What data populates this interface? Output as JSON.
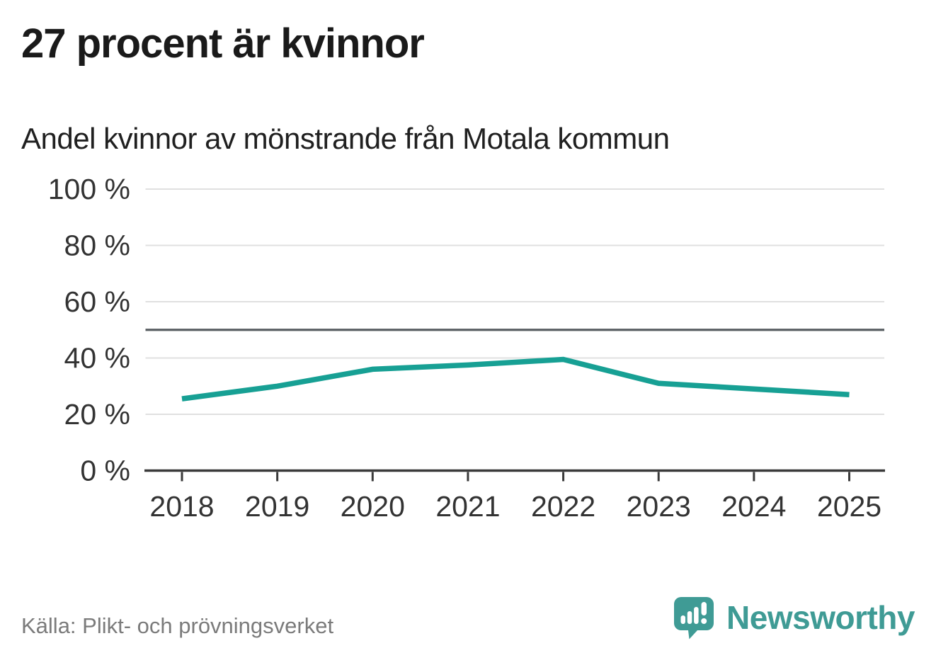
{
  "page": {
    "title": "27 procent är kvinnor",
    "subtitle": "Andel kvinnor av mönstrande från Motala kommun",
    "source": "Källa: Plikt- och prövningsverket",
    "brand": "Newsworthy"
  },
  "colors": {
    "line": "#17a094",
    "grid": "#e0e0e0",
    "reference": "#5a5f63",
    "axis": "#3a3a3a",
    "tick_text": "#333333",
    "muted_text": "#7b7b7b",
    "brand": "#3f9b95"
  },
  "chart_data": {
    "type": "line",
    "x": [
      2018,
      2019,
      2020,
      2021,
      2022,
      2023,
      2024,
      2025
    ],
    "series": [
      {
        "name": "Andel kvinnor av mönstrande, Motala kommun",
        "values": [
          25.5,
          30,
          36,
          37.5,
          39.5,
          31,
          29,
          27
        ]
      }
    ],
    "title": "27 procent är kvinnor",
    "subtitle": "Andel kvinnor av mönstrande från Motala kommun",
    "xlabel": "",
    "ylabel": "",
    "ylim": [
      0,
      100
    ],
    "yticks": [
      0,
      20,
      40,
      60,
      80,
      100
    ],
    "ytick_format": "{v} %",
    "reference_line": 50,
    "grid": "horizontal",
    "legend": "none"
  }
}
